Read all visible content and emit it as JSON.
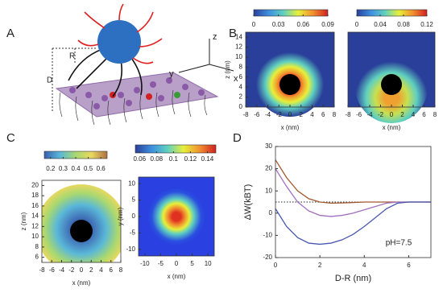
{
  "panel_labels": [
    "A",
    "B",
    "C",
    "D"
  ],
  "schematic_labels": [
    "D",
    "R",
    "z",
    "y",
    "x"
  ],
  "chart_data": [
    {
      "type": "heatmap",
      "colormap": "jet",
      "xlabel": "x (nm)",
      "ylabel": "z (nm)",
      "xlim": [
        -8,
        8
      ],
      "xticks": [
        -8,
        -6,
        -4,
        -2,
        0,
        2,
        4,
        6,
        8
      ],
      "ylim": [
        0,
        15
      ],
      "yticks": [
        0,
        2,
        4,
        6,
        8,
        10,
        12,
        14
      ],
      "clim": [
        0,
        0.09
      ],
      "cticks": [
        0,
        0.03,
        0.06,
        0.09
      ]
    },
    {
      "type": "heatmap",
      "colormap": "jet",
      "xlabel": "x (nm)",
      "xlim": [
        -8,
        8
      ],
      "xticks": [
        -8,
        -6,
        -4,
        -2,
        0,
        2,
        4,
        6,
        8
      ],
      "ylim": [
        0,
        15
      ],
      "clim": [
        0,
        0.12
      ],
      "cticks": [
        0,
        0.04,
        0.08,
        0.12
      ]
    },
    {
      "type": "heatmap",
      "colormap": "terrain",
      "xlabel": "x (nm)",
      "ylabel": "z (nm)",
      "xlim": [
        -8,
        8
      ],
      "xticks": [
        -8,
        -6,
        -4,
        -2,
        0,
        2,
        4,
        6,
        8
      ],
      "ylim": [
        5,
        21
      ],
      "yticks": [
        6,
        8,
        10,
        12,
        14,
        16,
        18,
        20
      ],
      "clim": [
        0.15,
        0.65
      ],
      "cticks": [
        0.2,
        0.3,
        0.4,
        0.5,
        0.6
      ]
    },
    {
      "type": "heatmap",
      "colormap": "jet",
      "xlabel": "x (nm)",
      "ylabel": "y (nm)",
      "xlim": [
        -12,
        12
      ],
      "xticks": [
        -10,
        -5,
        0,
        5,
        10
      ],
      "ylim": [
        -12,
        12
      ],
      "yticks": [
        -10,
        -5,
        0,
        5,
        10
      ],
      "clim": [
        0.055,
        0.15
      ],
      "cticks": [
        0.06,
        0.08,
        0.1,
        0.12,
        0.14
      ]
    },
    {
      "type": "line",
      "xlabel": "D-R (nm)",
      "ylabel": "ΔW(kBT)",
      "annotation": "pH=7.5",
      "x": [
        0,
        0.5,
        1,
        1.5,
        2,
        2.5,
        3,
        3.5,
        4,
        4.5,
        5,
        5.5,
        6,
        6.5,
        7
      ],
      "xlim": [
        0,
        7
      ],
      "xticks": [
        0,
        2,
        4,
        6
      ],
      "ylim": [
        -20,
        30
      ],
      "yticks": [
        -20,
        -10,
        0,
        10,
        20,
        30
      ],
      "reference_line": 5,
      "series": [
        {
          "color": "#a0582d",
          "values": [
            24,
            16,
            10,
            6.5,
            5,
            4.5,
            4.6,
            4.8,
            5,
            5,
            5,
            5,
            5,
            5,
            5
          ]
        },
        {
          "color": "#a070c0",
          "values": [
            20,
            12,
            5,
            1,
            -1,
            -1.5,
            -1,
            0,
            1.5,
            3,
            4.5,
            5,
            5,
            5,
            5
          ]
        },
        {
          "color": "#4858b0",
          "values": [
            2,
            -6,
            -11,
            -13.5,
            -14,
            -13.5,
            -12,
            -9.5,
            -6,
            -2,
            2,
            4.5,
            5,
            5,
            5
          ]
        }
      ]
    }
  ]
}
